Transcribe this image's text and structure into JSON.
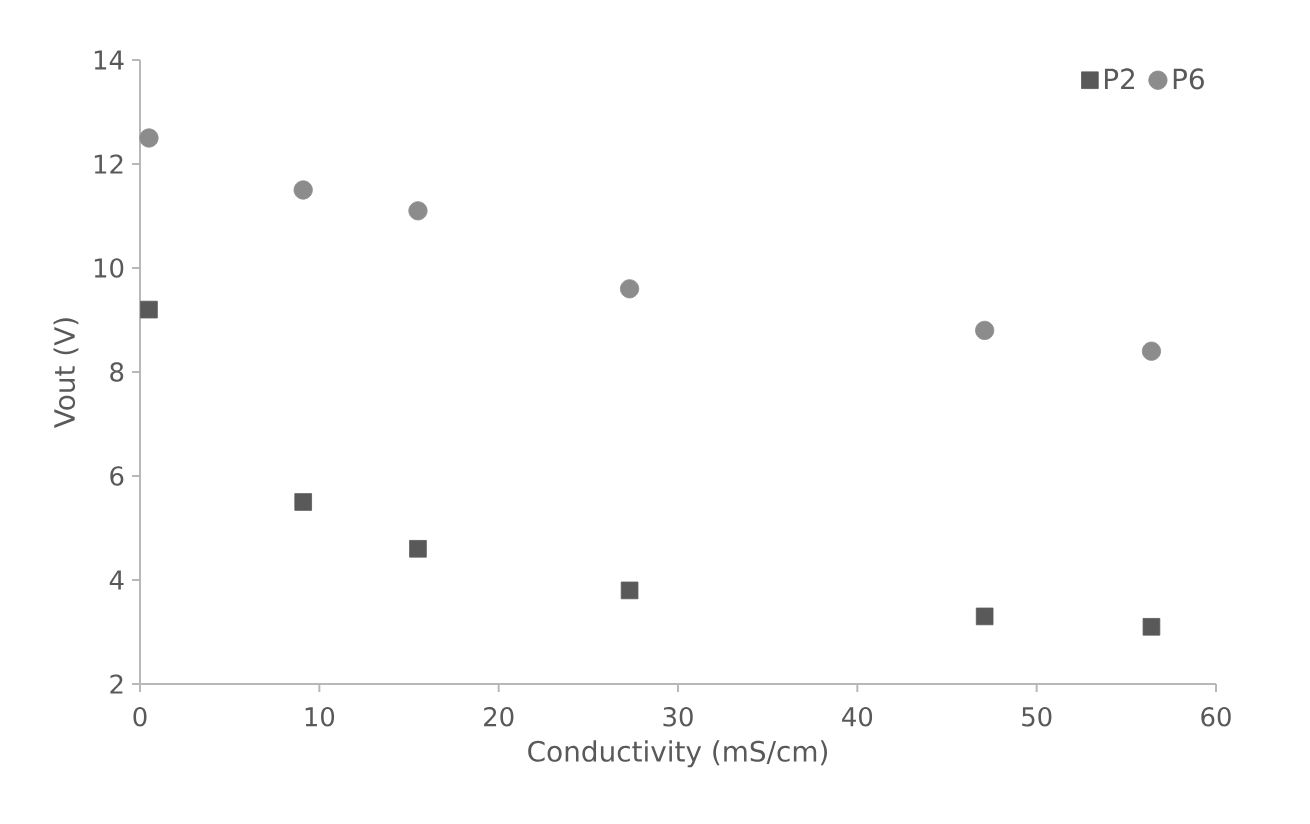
{
  "chart_data": {
    "type": "scatter",
    "xlabel": "Conductivity (mS/cm)",
    "ylabel": "Vout (V)",
    "xlim": [
      0,
      60
    ],
    "xticks": [
      0,
      10,
      20,
      30,
      40,
      50,
      60
    ],
    "ylim": [
      2,
      14
    ],
    "yticks": [
      2,
      4,
      6,
      8,
      10,
      12,
      14
    ],
    "grid": false,
    "legend": "top right",
    "series": [
      {
        "name": "P2",
        "color": "#595959",
        "marker": "square",
        "x": [
          0.5,
          9.1,
          15.5,
          27.3,
          47.1,
          56.4
        ],
        "values": [
          9.2,
          5.5,
          4.6,
          3.8,
          3.3,
          3.1
        ]
      },
      {
        "name": "P6",
        "color": "#8c8c8c",
        "marker": "circle",
        "x": [
          0.5,
          9.1,
          15.5,
          27.3,
          47.1,
          56.4
        ],
        "values": [
          12.5,
          11.5,
          11.1,
          9.6,
          8.8,
          8.4
        ]
      }
    ]
  }
}
